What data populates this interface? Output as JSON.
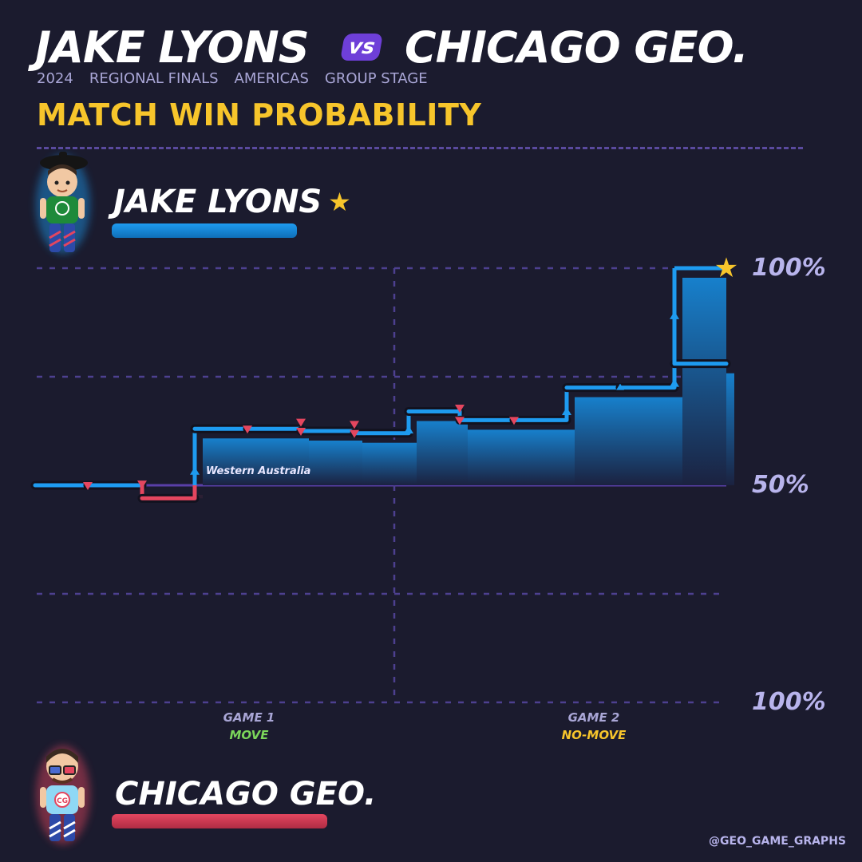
{
  "header": {
    "player1": "JAKE LYONS",
    "vs": "vs",
    "player2": "CHICAGO GEO.",
    "meta": [
      "2024",
      "REGIONAL FINALS",
      "AMERICAS",
      "GROUP STAGE"
    ],
    "subtitle": "MATCH WIN PROBABILITY"
  },
  "players": {
    "top": {
      "name": "JAKE LYONS",
      "color": "#1e9bf0",
      "winner_icon": "star-icon"
    },
    "bottom": {
      "name": "CHICAGO GEO.",
      "color": "#e4465f"
    }
  },
  "axis": {
    "top_label": "100%",
    "mid_label": "50%",
    "bottom_label": "100%"
  },
  "games": [
    {
      "label": "GAME 1",
      "mode": "MOVE",
      "mode_color": "#7bd65a"
    },
    {
      "label": "GAME 2",
      "mode": "NO-MOVE",
      "mode_color": "#f7c52b"
    }
  ],
  "credit": "@GEO_GAME_GRAPHS",
  "chart_data": {
    "type": "line",
    "step": true,
    "ylim": [
      0,
      100
    ],
    "y_meaning": "Jake Lyons match win probability (%)",
    "x_meaning": "round index",
    "series": [
      {
        "x": [
          0,
          1,
          2,
          3,
          4,
          5,
          6,
          7,
          8,
          9,
          10,
          11,
          12,
          13
        ],
        "y": [
          50,
          50,
          47,
          63,
          63,
          62.5,
          62,
          67,
          65,
          65,
          72.5,
          72.5,
          78,
          78
        ]
      }
    ],
    "annotations": [
      {
        "x": 3,
        "text": "Western Australia"
      }
    ],
    "game_divider_x": 6.5
  }
}
